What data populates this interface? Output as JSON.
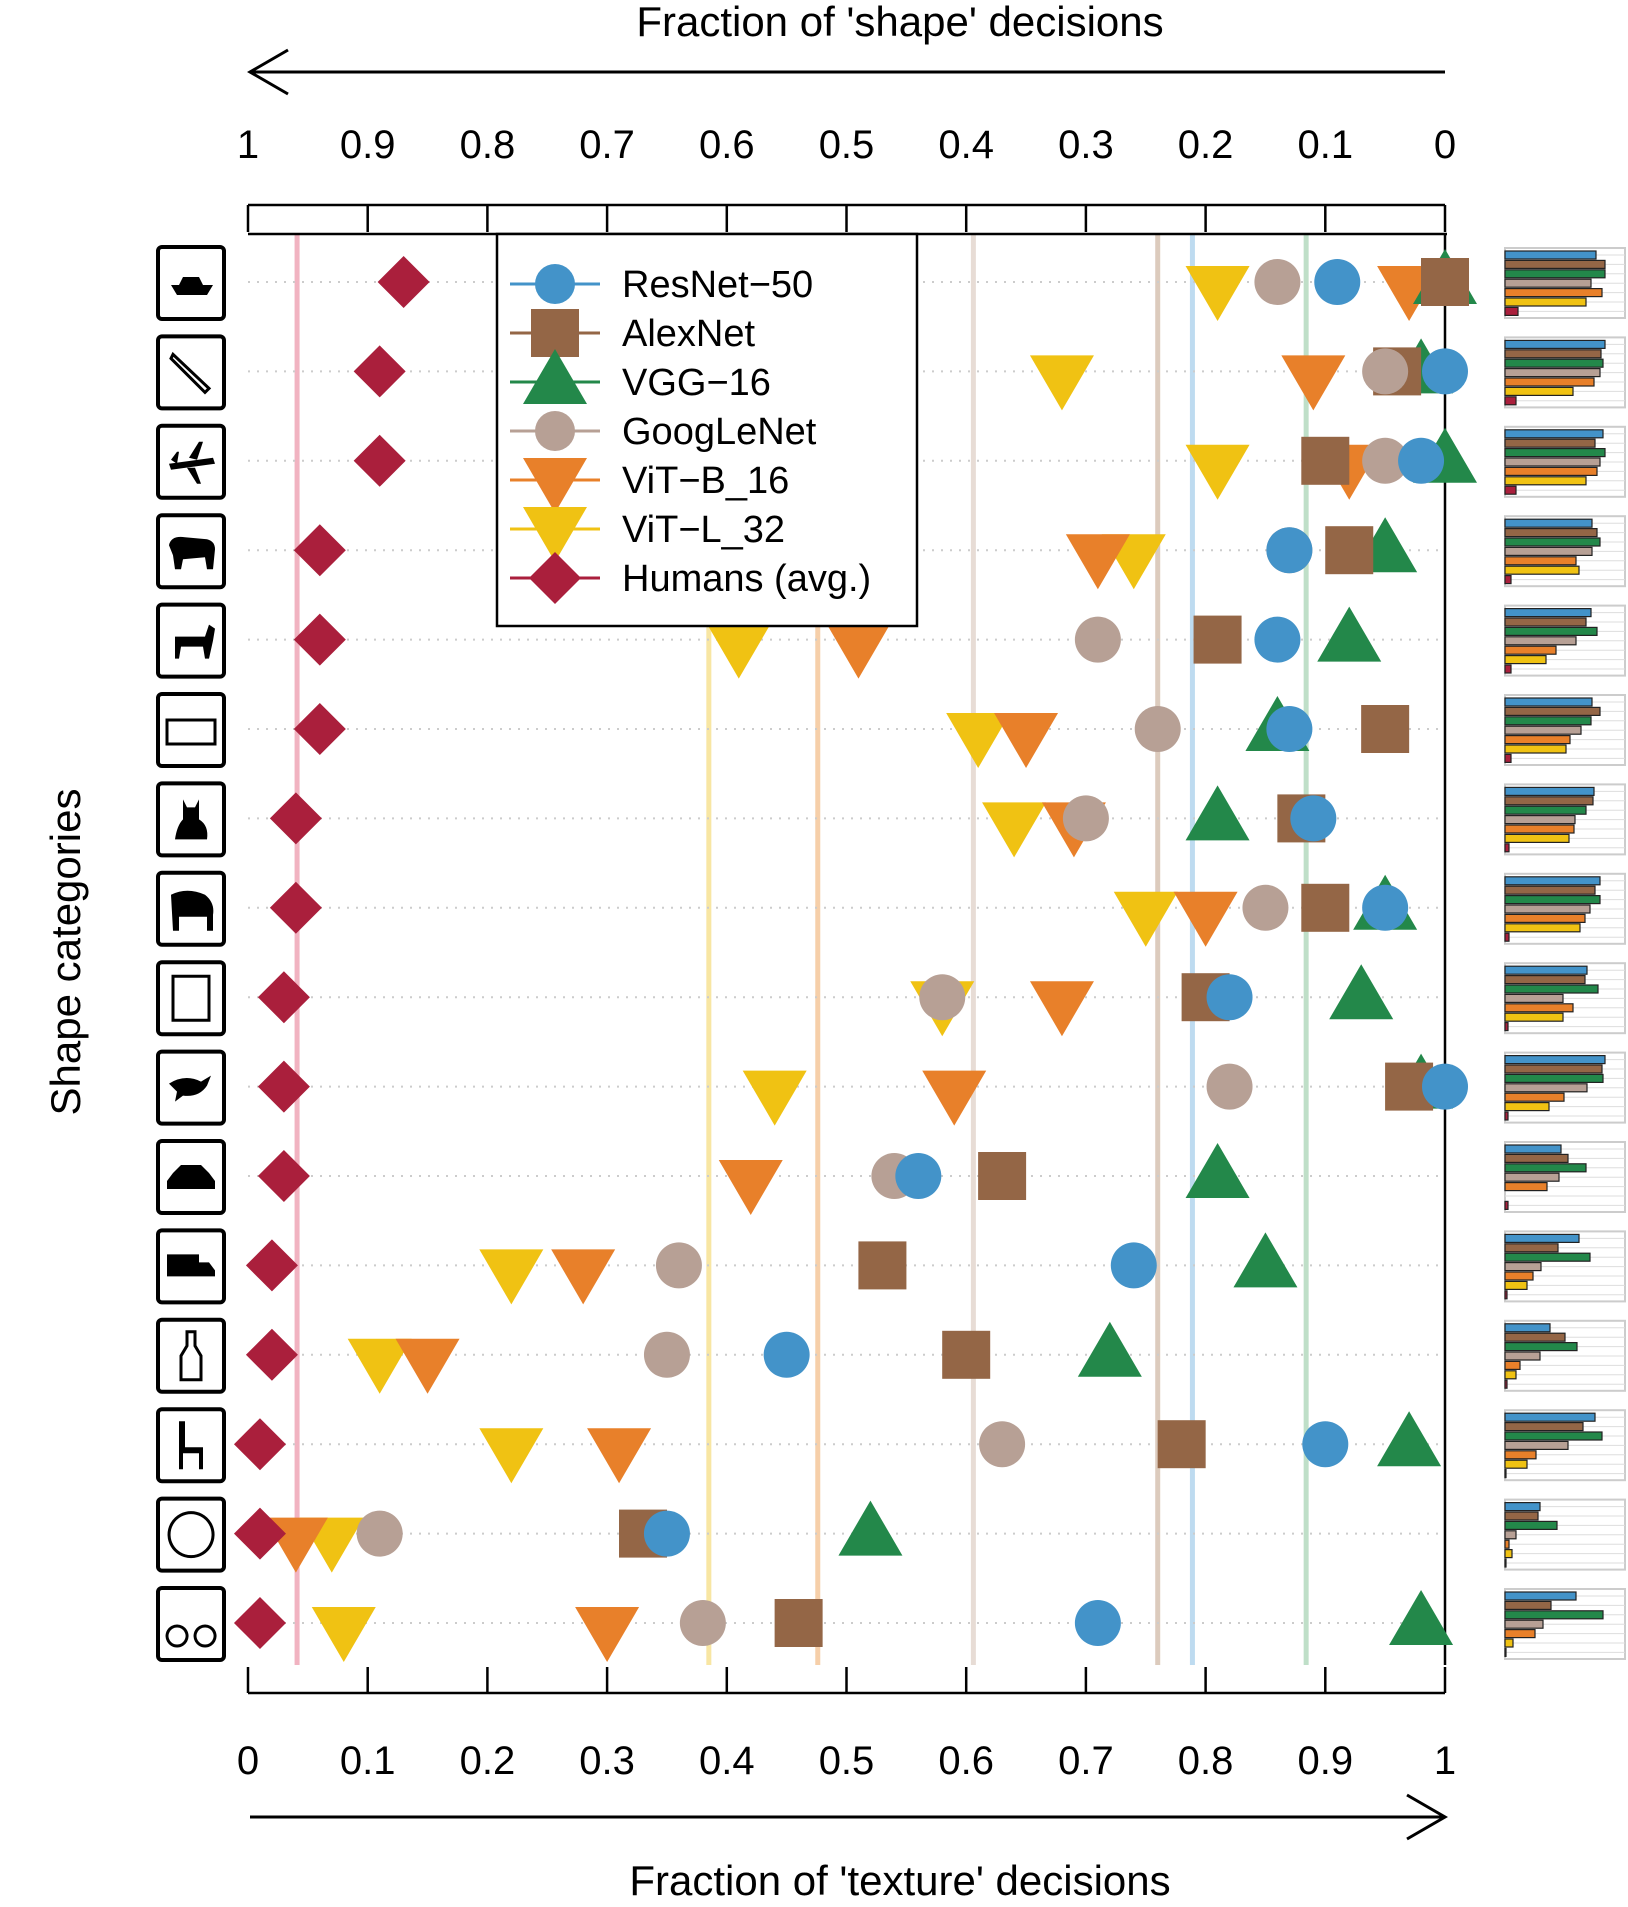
{
  "chart_data": {
    "type": "scatter",
    "top_axis": {
      "title": "Fraction of 'shape' decisions",
      "tick_labels": [
        "1",
        "0.9",
        "0.8",
        "0.7",
        "0.6",
        "0.5",
        "0.4",
        "0.3",
        "0.2",
        "0.1",
        "0"
      ],
      "direction": "right-to-left"
    },
    "bottom_axis": {
      "title": "Fraction of 'texture' decisions",
      "tick_labels": [
        "0",
        "0.1",
        "0.2",
        "0.3",
        "0.4",
        "0.5",
        "0.6",
        "0.7",
        "0.8",
        "0.9",
        "1"
      ],
      "direction": "left-to-right"
    },
    "xlim": [
      0,
      1
    ],
    "y_axis_title": "Shape categories",
    "grid": "horizontal dotted lines per category",
    "legend_placement": "top-left inside plot",
    "categories": [
      "boat",
      "knife",
      "airplane",
      "bear",
      "dog",
      "keyboard",
      "cat",
      "elephant",
      "oven",
      "bird",
      "car",
      "truck",
      "bottle",
      "chair",
      "clock",
      "bicycle"
    ],
    "series": [
      {
        "name": "ResNet−50",
        "marker": "circle",
        "color": "#4393c9",
        "values": [
          0.91,
          1.0,
          0.98,
          0.87,
          0.86,
          0.87,
          0.89,
          0.95,
          0.82,
          1.0,
          0.56,
          0.74,
          0.45,
          0.9,
          0.35,
          0.71
        ]
      },
      {
        "name": "AlexNet",
        "marker": "square",
        "color": "#946646",
        "values": [
          1.0,
          0.96,
          0.9,
          0.92,
          0.81,
          0.95,
          0.88,
          0.9,
          0.8,
          0.97,
          0.63,
          0.53,
          0.6,
          0.78,
          0.33,
          0.46
        ]
      },
      {
        "name": "VGG−16",
        "marker": "triangle-up",
        "color": "#23884a",
        "values": [
          1.0,
          0.98,
          1.0,
          0.95,
          0.92,
          0.86,
          0.81,
          0.95,
          0.93,
          0.98,
          0.81,
          0.85,
          0.72,
          0.97,
          0.52,
          0.98
        ]
      },
      {
        "name": "GoogLeNet",
        "marker": "circle",
        "color": "#b7a095",
        "values": [
          0.86,
          0.95,
          0.95,
          0.87,
          0.71,
          0.76,
          0.7,
          0.85,
          0.58,
          0.82,
          0.54,
          0.36,
          0.35,
          0.63,
          0.11,
          0.38
        ]
      },
      {
        "name": "ViT−B_16",
        "marker": "triangle-down",
        "color": "#e8802a",
        "values": [
          0.97,
          0.89,
          0.92,
          0.71,
          0.51,
          0.65,
          0.69,
          0.8,
          0.68,
          0.59,
          0.42,
          0.28,
          0.15,
          0.31,
          0.04,
          0.3
        ]
      },
      {
        "name": "ViT−L_32",
        "marker": "triangle-down",
        "color": "#f0c213",
        "values": [
          0.81,
          0.68,
          0.81,
          0.74,
          0.41,
          0.61,
          0.64,
          0.75,
          0.58,
          0.44,
          null,
          0.22,
          0.11,
          0.22,
          0.07,
          0.08
        ]
      },
      {
        "name": "Humans (avg.)",
        "marker": "diamond",
        "color": "#aa1f3c",
        "values": [
          0.13,
          0.11,
          0.11,
          0.06,
          0.06,
          0.06,
          0.04,
          0.04,
          0.03,
          0.03,
          0.03,
          0.02,
          0.02,
          0.01,
          0.01,
          0.01
        ]
      }
    ],
    "average_lines": [
      {
        "series": "Humans (avg.)",
        "value": 0.041,
        "color": "#f1b3c1"
      },
      {
        "series": "ViT−L_32",
        "value": 0.385,
        "color": "#f8e6a3"
      },
      {
        "series": "ViT−B_16",
        "value": 0.476,
        "color": "#f6cfa9"
      },
      {
        "series": "GoogLeNet",
        "value": 0.606,
        "color": "#e7dcd5"
      },
      {
        "series": "AlexNet",
        "value": 0.76,
        "color": "#dccbbd"
      },
      {
        "series": "ResNet−50",
        "value": 0.789,
        "color": "#bedbf0"
      },
      {
        "series": "VGG−16",
        "value": 0.884,
        "color": "#bfdfc8"
      }
    ],
    "side_bars": "per-category mini bar charts mirroring each series' texture fraction"
  }
}
